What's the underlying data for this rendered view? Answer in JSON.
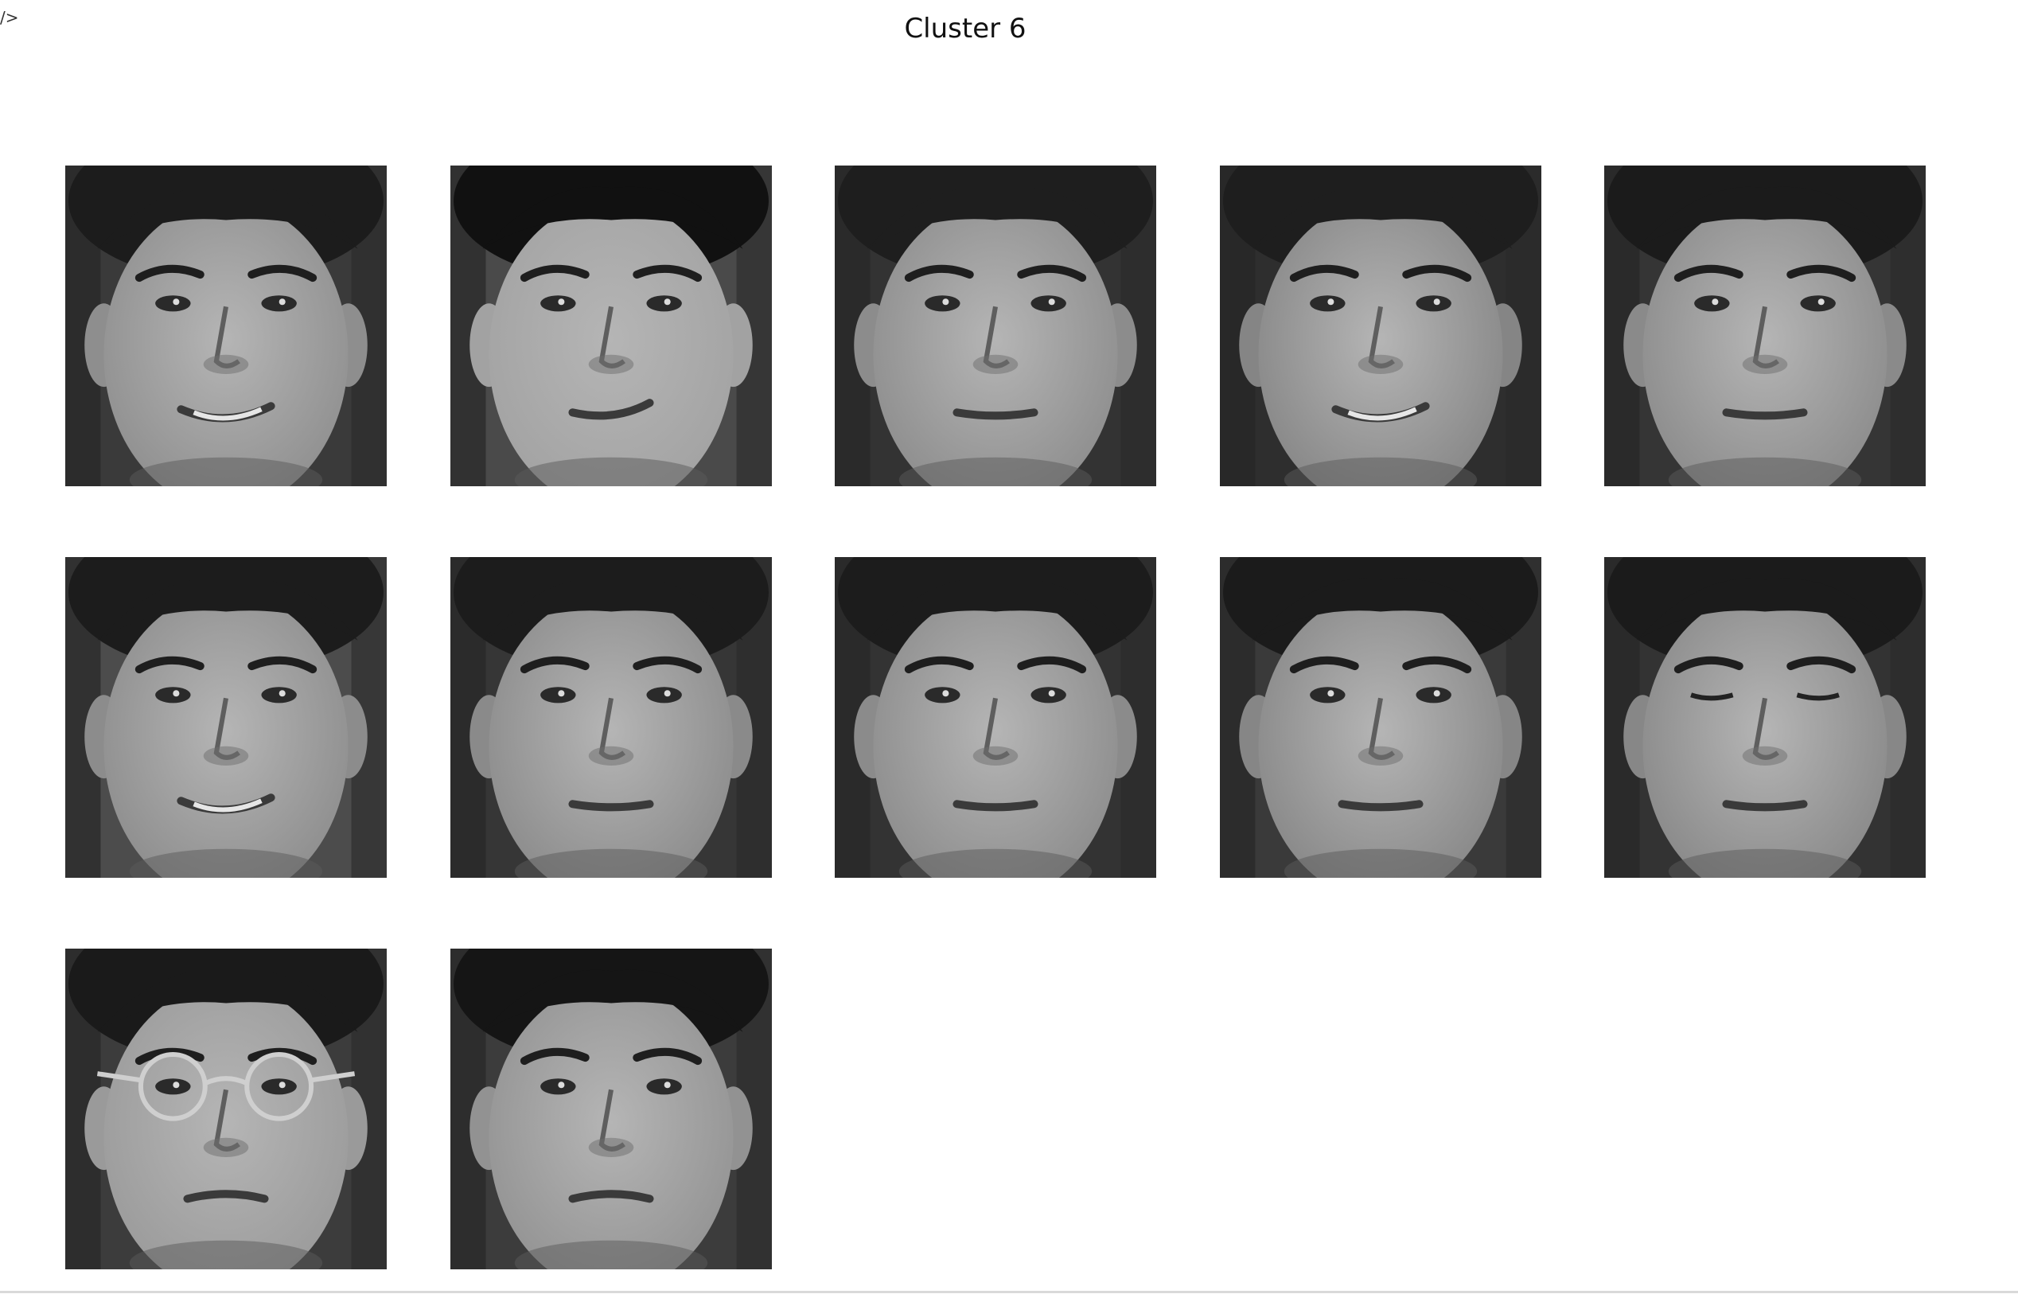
{
  "page": {
    "corner_glyph": "/>",
    "title": "Cluster 6"
  },
  "faces": [
    {
      "id": "face-1",
      "row": 1,
      "col": 1,
      "hair": "#1c1c1c",
      "skin": "#8e8e8e",
      "background": "#3a3a3a",
      "expression": "smile",
      "glasses": false
    },
    {
      "id": "face-2",
      "row": 1,
      "col": 2,
      "hair": "#111111",
      "skin": "#a2a2a2",
      "background": "#4a4a4a",
      "expression": "smirk",
      "glasses": false
    },
    {
      "id": "face-3",
      "row": 1,
      "col": 3,
      "hair": "#1e1e1e",
      "skin": "#8c8c8c",
      "background": "#333333",
      "expression": "neutral",
      "glasses": false
    },
    {
      "id": "face-4",
      "row": 1,
      "col": 4,
      "hair": "#1e1e1e",
      "skin": "#858585",
      "background": "#2e2e2e",
      "expression": "smile",
      "glasses": false
    },
    {
      "id": "face-5",
      "row": 1,
      "col": 5,
      "hair": "#1b1b1b",
      "skin": "#8a8a8a",
      "background": "#353535",
      "expression": "neutral",
      "glasses": false
    },
    {
      "id": "face-6",
      "row": 2,
      "col": 1,
      "hair": "#1c1c1c",
      "skin": "#8c8c8c",
      "background": "#4c4c4c",
      "expression": "smile",
      "glasses": false
    },
    {
      "id": "face-7",
      "row": 2,
      "col": 2,
      "hair": "#1c1c1c",
      "skin": "#8a8a8a",
      "background": "#363636",
      "expression": "neutral",
      "glasses": false
    },
    {
      "id": "face-8",
      "row": 2,
      "col": 3,
      "hair": "#1c1c1c",
      "skin": "#8b8b8b",
      "background": "#333333",
      "expression": "neutral",
      "glasses": false
    },
    {
      "id": "face-9",
      "row": 2,
      "col": 4,
      "hair": "#1b1b1b",
      "skin": "#868686",
      "background": "#3a3a3a",
      "expression": "neutral",
      "glasses": false
    },
    {
      "id": "face-10",
      "row": 2,
      "col": 5,
      "hair": "#1b1b1b",
      "skin": "#878787",
      "background": "#333333",
      "expression": "eyes-closed",
      "glasses": false
    },
    {
      "id": "face-11",
      "row": 3,
      "col": 1,
      "hair": "#1a1a1a",
      "skin": "#9a9a9a",
      "background": "#3c3c3c",
      "expression": "frown",
      "glasses": true
    },
    {
      "id": "face-12",
      "row": 3,
      "col": 2,
      "hair": "#151515",
      "skin": "#929292",
      "background": "#3c3c3c",
      "expression": "frown",
      "glasses": false
    }
  ]
}
